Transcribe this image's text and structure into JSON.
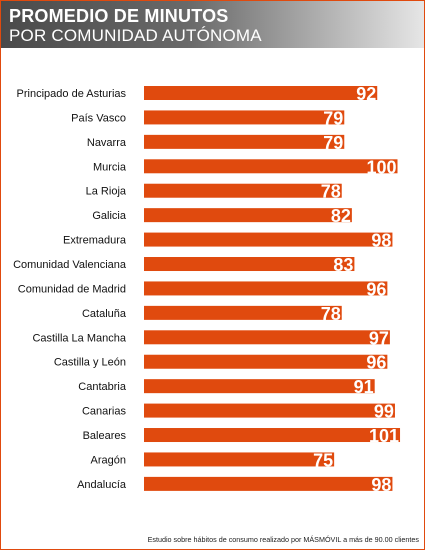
{
  "header": {
    "title_line1": "PROMEDIO DE MINUTOS",
    "title_line2": "POR COMUNIDAD AUTÓNOMA"
  },
  "footer": {
    "note": "Estudio sobre hábitos de consumo realizado por MÁSMÓVIL a más de 90.00 clientes"
  },
  "colors": {
    "accent": "#e04a0e",
    "bar_label": "#ffffff",
    "text": "#111111"
  },
  "chart_data": {
    "type": "bar",
    "orientation": "horizontal",
    "categories": [
      "Principado de Asturias",
      "País Vasco",
      "Navarra",
      "Murcia",
      "La Rioja",
      "Galicia",
      "Extremadura",
      "Comunidad Valenciana",
      "Comunidad de Madrid",
      "Cataluña",
      "Castilla La Mancha",
      "Castilla y León",
      "Cantabria",
      "Canarias",
      "Baleares",
      "Aragón",
      "Andalucía"
    ],
    "values": [
      92,
      79,
      79,
      100,
      78,
      82,
      98,
      83,
      96,
      78,
      97,
      96,
      91,
      99,
      101,
      75,
      98
    ],
    "value_labels": [
      "92",
      "79",
      "79",
      "100",
      "78",
      "82",
      "98",
      "83",
      "96",
      "78",
      "97",
      "96",
      "91",
      "99",
      "101",
      "75",
      "98"
    ],
    "title": "PROMEDIO DE MINUTOS POR COMUNIDAD AUTÓNOMA",
    "xlabel": "",
    "ylabel": "",
    "xlim": [
      0,
      101
    ],
    "grid": false,
    "legend": "none"
  }
}
